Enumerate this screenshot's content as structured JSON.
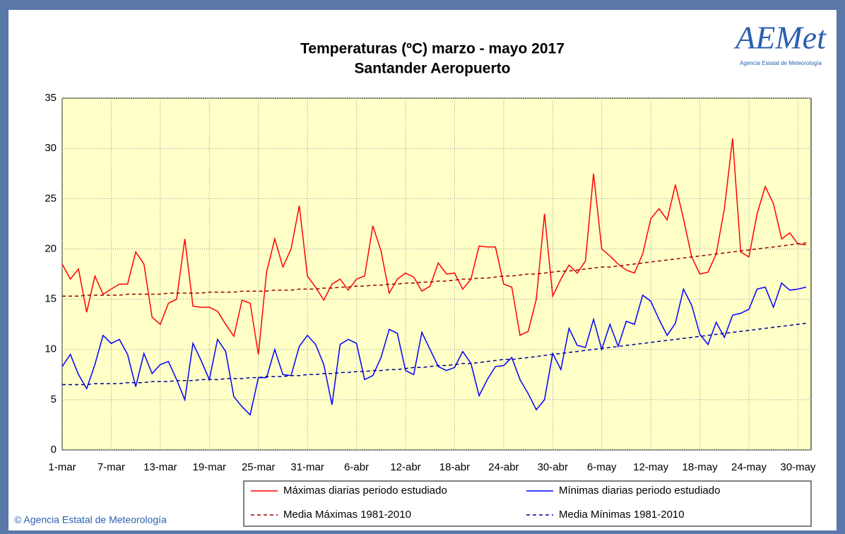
{
  "chart_data": {
    "type": "line",
    "title": "Temperaturas (ºC) marzo - mayo 2017",
    "subtitle": "Santander Aeropuerto",
    "categories": [
      "1-mar",
      null,
      null,
      null,
      null,
      null,
      "7-mar",
      null,
      null,
      null,
      null,
      null,
      "13-mar",
      null,
      null,
      null,
      null,
      null,
      "19-mar",
      null,
      null,
      null,
      null,
      null,
      "25-mar",
      null,
      null,
      null,
      null,
      null,
      "31-mar",
      null,
      null,
      null,
      null,
      null,
      "6-abr",
      null,
      null,
      null,
      null,
      null,
      "12-abr",
      null,
      null,
      null,
      null,
      null,
      "18-abr",
      null,
      null,
      null,
      null,
      null,
      "24-abr",
      null,
      null,
      null,
      null,
      null,
      "30-abr",
      null,
      null,
      null,
      null,
      null,
      "6-may",
      null,
      null,
      null,
      null,
      null,
      "12-may",
      null,
      null,
      null,
      null,
      null,
      "18-may",
      null,
      null,
      null,
      null,
      null,
      "24-may",
      null,
      null,
      null,
      null,
      null,
      "30-may",
      null
    ],
    "series": [
      {
        "name": "Máximas diarias periodo estudiado",
        "color": "#ff0000",
        "dashed": false,
        "values": [
          18.5,
          17,
          18,
          13.7,
          17.3,
          15.5,
          16,
          16.5,
          16.5,
          19.7,
          18.5,
          13.2,
          12.5,
          14.6,
          15,
          21,
          14.3,
          14.2,
          14.2,
          13.8,
          12.5,
          11.3,
          14.9,
          14.6,
          9.5,
          17.7,
          21,
          18.2,
          20,
          24.3,
          17.3,
          16.2,
          14.9,
          16.5,
          17,
          15.9,
          17,
          17.3,
          22.3,
          19.8,
          15.6,
          17,
          17.6,
          17.2,
          15.8,
          16.3,
          18.6,
          17.5,
          17.6,
          16,
          17,
          20.3,
          20.2,
          20.2,
          16.5,
          16.2,
          11.4,
          11.8,
          15,
          23.5,
          15.3,
          17,
          18.4,
          17.6,
          18.8,
          27.5,
          20,
          19.3,
          18.5,
          17.9,
          17.6,
          19.5,
          23,
          24,
          22.9,
          26.4,
          23,
          19.2,
          17.5,
          17.7,
          19.5,
          24,
          31,
          19.7,
          19.2,
          23.5,
          26.2,
          24.5,
          21,
          21.6,
          20.5,
          20.4
        ]
      },
      {
        "name": "Mínimas diarias periodo estudiado",
        "color": "#0000ff",
        "dashed": false,
        "values": [
          8.3,
          9.5,
          7.5,
          6.1,
          8.5,
          11.4,
          10.6,
          11,
          9.5,
          6.3,
          9.6,
          7.6,
          8.5,
          8.8,
          7,
          5,
          10.6,
          8.9,
          7,
          11,
          9.8,
          5.3,
          4.3,
          3.5,
          7.2,
          7.2,
          10,
          7.5,
          7.4,
          10.3,
          11.4,
          10.5,
          8.5,
          4.5,
          10.5,
          11,
          10.6,
          7,
          7.4,
          9.2,
          12,
          11.6,
          7.9,
          7.5,
          11.7,
          10,
          8.3,
          7.9,
          8.2,
          9.8,
          8.6,
          5.4,
          7,
          8.3,
          8.4,
          9.2,
          7,
          5.6,
          4,
          5,
          9.6,
          8,
          12.1,
          10.4,
          10.2,
          13,
          10,
          12.5,
          10.3,
          12.8,
          12.5,
          15.4,
          14.8,
          13,
          11.4,
          12.6,
          16,
          14.4,
          11.5,
          10.5,
          12.7,
          11.2,
          13.4,
          13.6,
          14,
          16,
          16.2,
          14.2,
          16.6,
          15.9,
          16,
          16.2
        ]
      },
      {
        "name": "Media Máximas 1981-2010",
        "color": "#990000",
        "dashed": true,
        "values": [
          15.3,
          15.3,
          15.3,
          15.4,
          15.4,
          15.4,
          15.4,
          15.4,
          15.5,
          15.5,
          15.5,
          15.5,
          15.5,
          15.6,
          15.6,
          15.6,
          15.6,
          15.6,
          15.7,
          15.7,
          15.7,
          15.7,
          15.8,
          15.8,
          15.8,
          15.8,
          15.9,
          15.9,
          15.9,
          16.0,
          16.0,
          16.0,
          16.1,
          16.1,
          16.2,
          16.2,
          16.3,
          16.3,
          16.4,
          16.4,
          16.5,
          16.5,
          16.6,
          16.6,
          16.7,
          16.7,
          16.8,
          16.8,
          16.9,
          17.0,
          17.0,
          17.1,
          17.1,
          17.2,
          17.3,
          17.3,
          17.4,
          17.5,
          17.5,
          17.6,
          17.7,
          17.8,
          17.8,
          17.9,
          18.0,
          18.1,
          18.2,
          18.2,
          18.3,
          18.4,
          18.5,
          18.6,
          18.7,
          18.8,
          18.9,
          19.0,
          19.1,
          19.2,
          19.3,
          19.4,
          19.5,
          19.6,
          19.7,
          19.8,
          19.9,
          20.0,
          20.1,
          20.2,
          20.3,
          20.4,
          20.5,
          20.6
        ]
      },
      {
        "name": "Media Mínimas 1981-2010",
        "color": "#000099",
        "dashed": true,
        "values": [
          6.5,
          6.5,
          6.5,
          6.5,
          6.6,
          6.6,
          6.6,
          6.6,
          6.7,
          6.7,
          6.7,
          6.8,
          6.8,
          6.8,
          6.9,
          6.9,
          6.9,
          7.0,
          7.0,
          7.0,
          7.1,
          7.1,
          7.1,
          7.2,
          7.2,
          7.3,
          7.3,
          7.3,
          7.4,
          7.4,
          7.5,
          7.5,
          7.6,
          7.6,
          7.7,
          7.7,
          7.8,
          7.8,
          7.9,
          7.9,
          8.0,
          8.0,
          8.1,
          8.2,
          8.2,
          8.3,
          8.4,
          8.4,
          8.5,
          8.6,
          8.6,
          8.7,
          8.8,
          8.9,
          9.0,
          9.0,
          9.1,
          9.2,
          9.3,
          9.4,
          9.5,
          9.6,
          9.7,
          9.8,
          9.9,
          10.0,
          10.1,
          10.2,
          10.3,
          10.4,
          10.5,
          10.6,
          10.7,
          10.8,
          10.9,
          11.0,
          11.1,
          11.2,
          11.3,
          11.4,
          11.5,
          11.6,
          11.7,
          11.8,
          11.9,
          12.0,
          12.1,
          12.2,
          12.3,
          12.4,
          12.5,
          12.6
        ]
      }
    ],
    "ylim": [
      0,
      35
    ],
    "yticks": [
      0,
      5,
      10,
      15,
      20,
      25,
      30,
      35
    ],
    "grid": true,
    "plot_background": "#ffffc8",
    "logo": {
      "text": "AEMet",
      "subtitle": "Agencia Estatal de Meteorología"
    },
    "footer": "© Agencia Estatal de Meteorología"
  }
}
